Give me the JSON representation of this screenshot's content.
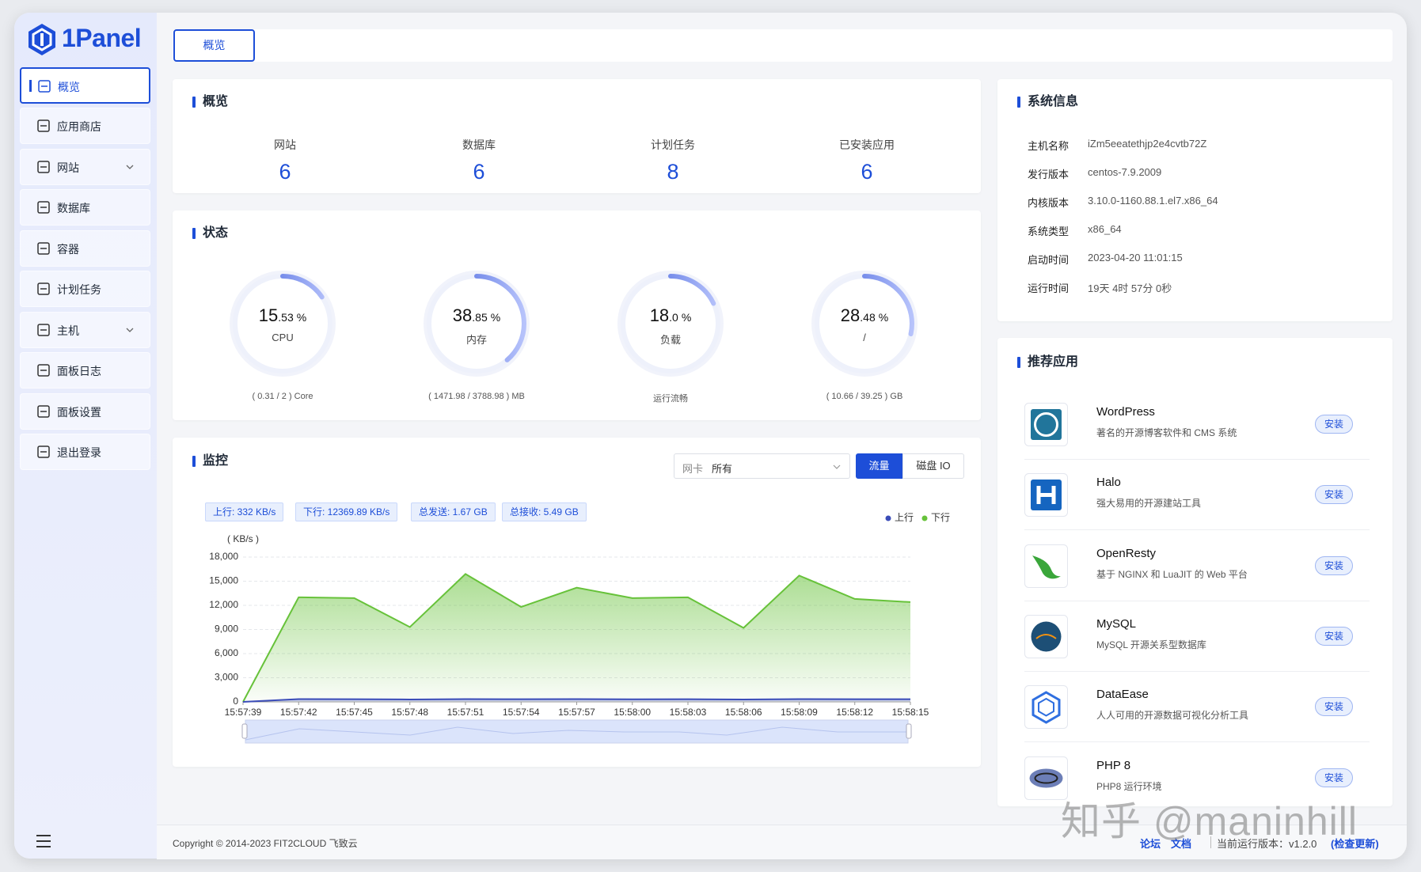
{
  "sidebar": {
    "logo": "1Panel",
    "menu": [
      {
        "label": "概览",
        "active": true
      },
      {
        "label": "应用商店"
      },
      {
        "label": "网站",
        "submenu": true
      },
      {
        "label": "数据库"
      },
      {
        "label": "容器"
      },
      {
        "label": "计划任务"
      },
      {
        "label": "主机",
        "submenu": true
      },
      {
        "label": "面板日志"
      },
      {
        "label": "面板设置"
      },
      {
        "label": "退出登录"
      }
    ]
  },
  "tabs": [
    "概览"
  ],
  "overview": {
    "title": "概览",
    "items": [
      {
        "label": "网站",
        "value": 6
      },
      {
        "label": "数据库",
        "value": 6
      },
      {
        "label": "计划任务",
        "value": 8
      },
      {
        "label": "已安装应用",
        "value": 6
      }
    ]
  },
  "status": {
    "title": "状态",
    "gauges": [
      {
        "percent": 15.53,
        "integer": "15",
        "decimal": ".53",
        "unit": "%",
        "name": "CPU",
        "detail": "( 0.31 / 2 ) Core"
      },
      {
        "percent": 38.85,
        "integer": "38",
        "decimal": ".85",
        "unit": "%",
        "name": "内存",
        "detail": "( 1471.98 / 3788.98 ) MB"
      },
      {
        "percent": 18.0,
        "integer": "18",
        "decimal": ".0",
        "unit": "%",
        "name": "负载",
        "detail": "运行流畅"
      },
      {
        "percent": 28.48,
        "integer": "28",
        "decimal": ".48",
        "unit": "%",
        "name": "/",
        "detail": "( 10.66 / 39.25 ) GB"
      }
    ]
  },
  "monitor": {
    "title": "监控",
    "nic_label": "网卡",
    "nic_value": "所有",
    "buttons": [
      {
        "label": "流量",
        "active": true
      },
      {
        "label": "磁盘 IO"
      }
    ],
    "stats": [
      "上行: 332 KB/s",
      "下行: 12369.89 KB/s",
      "总发送: 1.67 GB",
      "总接收: 5.49 GB"
    ]
  },
  "chart_data": {
    "type": "area",
    "y_unit": "( KB/s )",
    "x": [
      "15:57:39",
      "15:57:42",
      "15:57:45",
      "15:57:48",
      "15:57:51",
      "15:57:54",
      "15:57:57",
      "15:58:00",
      "15:58:03",
      "15:58:06",
      "15:58:09",
      "15:58:12",
      "15:58:15"
    ],
    "series": [
      {
        "name": "上行",
        "color": "#3b4cb8",
        "values": [
          0,
          350,
          330,
          300,
          350,
          330,
          340,
          320,
          330,
          300,
          350,
          330,
          332
        ]
      },
      {
        "name": "下行",
        "color": "#67c23a",
        "values": [
          0,
          13000,
          12900,
          9300,
          15900,
          11800,
          14200,
          12900,
          13000,
          9200,
          15700,
          12800,
          12400
        ]
      }
    ],
    "ylim": [
      0,
      18000
    ],
    "yticks": [
      0,
      {
        "value": 3000,
        "label": "3,000"
      },
      {
        "value": 6000,
        "label": "6,000"
      },
      {
        "value": 9000,
        "label": "9,000"
      },
      {
        "value": 12000,
        "label": "12,000"
      },
      {
        "value": 15000,
        "label": "15,000"
      },
      {
        "value": 18000,
        "label": "18,000"
      }
    ],
    "grid": true,
    "legend": "top-right"
  },
  "system_info": {
    "title": "系统信息",
    "rows": [
      [
        "主机名称",
        "iZm5eeatethjp2e4cvtb72Z"
      ],
      [
        "发行版本",
        "centos-7.9.2009"
      ],
      [
        "内核版本",
        "3.10.0-1160.88.1.el7.x86_64"
      ],
      [
        "系统类型",
        "x86_64"
      ],
      [
        "启动时间",
        "2023-04-20 11:01:15"
      ],
      [
        "运行时间",
        "19天 4时 57分 0秒"
      ]
    ]
  },
  "apps": {
    "title": "推荐应用",
    "items": [
      {
        "name": "WordPress",
        "description": "著名的开源博客软件和 CMS 系统",
        "action": "安装"
      },
      {
        "name": "Halo",
        "description": "强大易用的开源建站工具",
        "action": "安装"
      },
      {
        "name": "OpenResty",
        "description": "基于 NGINX 和 LuaJIT 的 Web 平台",
        "action": "安装"
      },
      {
        "name": "MySQL",
        "description": "MySQL 开源关系型数据库",
        "action": "安装"
      },
      {
        "name": "DataEase",
        "description": "人人可用的开源数据可视化分析工具",
        "action": "安装"
      },
      {
        "name": "PHP 8",
        "description": "PHP8 运行环境",
        "action": "安装"
      }
    ]
  },
  "footer": {
    "copyright": "Copyright © 2014-2023 FIT2CLOUD 飞致云",
    "links": [
      "论坛",
      "文档"
    ],
    "version": "当前运行版本：v1.2.0",
    "check_update": "(检查更新)"
  },
  "watermark": "知乎 @maninhill"
}
